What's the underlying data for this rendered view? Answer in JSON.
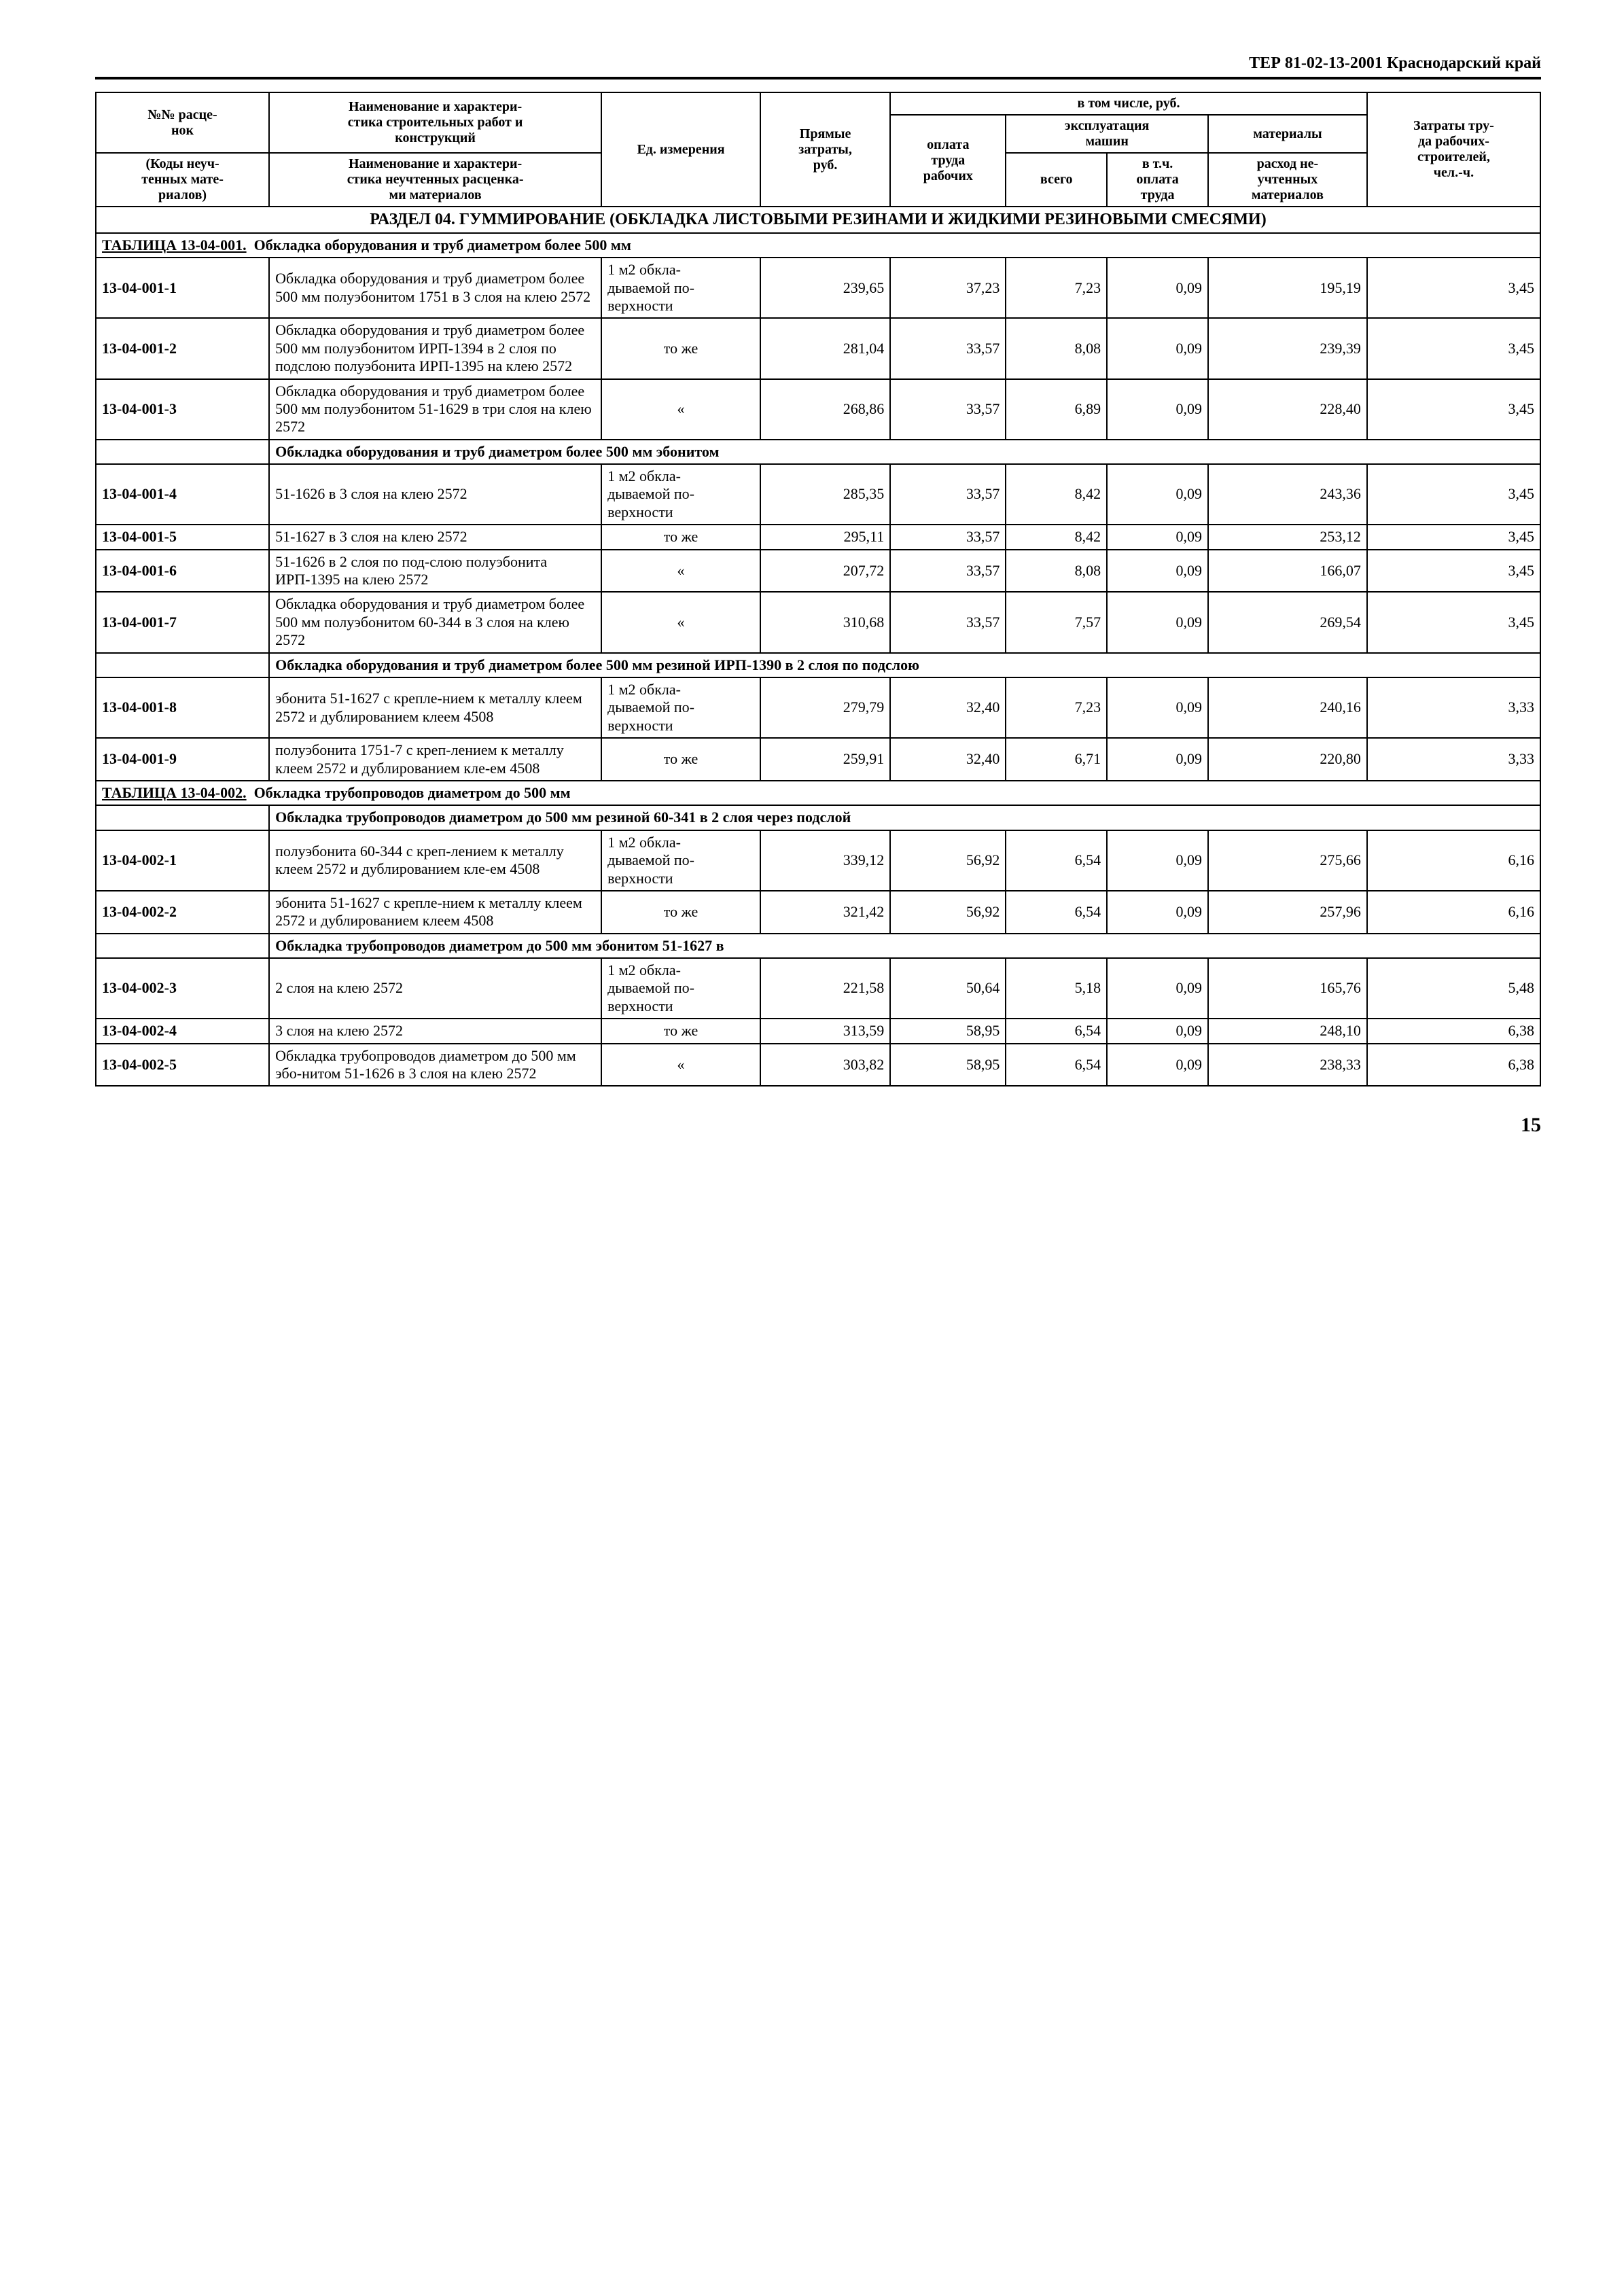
{
  "header": "ТЕР 81-02-13-2001  Краснодарский край",
  "columns": {
    "c1_top": "№№ расце-\nнок",
    "c1_bot": "(Коды неуч-\nтенных мате-\nриалов)",
    "c2_top": "Наименование и характери-\nстика строительных работ и\nконструкций",
    "c2_bot": "Наименование и характери-\nстика неучтенных расценка-\nми материалов",
    "c3": "Ед. измерения",
    "c4": "Прямые\nзатраты,\nруб.",
    "c5_group": "в том числе, руб.",
    "c5": "оплата\nтруда\nрабочих",
    "c6_group": "эксплуатация\nмашин",
    "c6a": "всего",
    "c6b": "в т.ч.\nоплата\nтруда",
    "c7_top": "материалы",
    "c7_bot": "расход не-\nучтенных\nматериалов",
    "c8": "Затраты тру-\nда рабочих-\nстроителей,\nчел.-ч."
  },
  "section": "РАЗДЕЛ 04. ГУММИРОВАНИЕ (ОБКЛАДКА ЛИСТОВЫМИ РЕЗИНАМИ И ЖИДКИМИ РЕЗИНОВЫМИ СМЕСЯМИ)",
  "t1_title_a": "ТАБЛИЦА 13-04-001.",
  "t1_title_b": "Обкладка оборудования и труб диаметром более 500 мм",
  "unit_m2": "1 м2 обкла-\nдываемой по-\nверхности",
  "unit_same": "то же",
  "unit_ditto": "«",
  "sub_1": "Обкладка оборудования и труб диаметром более 500 мм эбонитом",
  "sub_2": "Обкладка оборудования и труб диаметром более 500 мм резиной ИРП-1390 в 2 слоя по подслою",
  "rows1": [
    {
      "code": "13-04-001-1",
      "desc": "Обкладка оборудования и труб диаметром более 500 мм полуэбонитом 1751 в 3 слоя на клею 2572",
      "unit": "m2",
      "v": [
        "239,65",
        "37,23",
        "7,23",
        "0,09",
        "195,19",
        "3,45"
      ]
    },
    {
      "code": "13-04-001-2",
      "desc": "Обкладка оборудования и труб диаметром более 500 мм полуэбонитом ИРП-1394 в 2 слоя по подслою полуэбонита ИРП-1395 на клею 2572",
      "unit": "same",
      "v": [
        "281,04",
        "33,57",
        "8,08",
        "0,09",
        "239,39",
        "3,45"
      ]
    },
    {
      "code": "13-04-001-3",
      "desc": "Обкладка оборудования и труб диаметром более 500 мм полуэбонитом 51-1629 в три слоя на клею 2572",
      "unit": "ditto",
      "v": [
        "268,86",
        "33,57",
        "6,89",
        "0,09",
        "228,40",
        "3,45"
      ]
    }
  ],
  "rows1b": [
    {
      "code": "13-04-001-4",
      "desc": "51-1626 в 3 слоя на клею 2572",
      "unit": "m2",
      "v": [
        "285,35",
        "33,57",
        "8,42",
        "0,09",
        "243,36",
        "3,45"
      ]
    },
    {
      "code": "13-04-001-5",
      "desc": "51-1627 в 3 слоя на клею 2572",
      "unit": "same",
      "v": [
        "295,11",
        "33,57",
        "8,42",
        "0,09",
        "253,12",
        "3,45"
      ]
    },
    {
      "code": "13-04-001-6",
      "desc": "51-1626 в 2 слоя по под-слою полуэбонита ИРП-1395 на клею 2572",
      "unit": "ditto",
      "v": [
        "207,72",
        "33,57",
        "8,08",
        "0,09",
        "166,07",
        "3,45"
      ]
    },
    {
      "code": "13-04-001-7",
      "desc": "Обкладка оборудования и труб диаметром более 500 мм полуэбонитом 60-344 в 3 слоя на клею 2572",
      "unit": "ditto",
      "v": [
        "310,68",
        "33,57",
        "7,57",
        "0,09",
        "269,54",
        "3,45"
      ]
    }
  ],
  "rows1c": [
    {
      "code": "13-04-001-8",
      "desc": "эбонита 51-1627 с крепле-нием к металлу клеем 2572 и дублированием клеем 4508",
      "unit": "m2",
      "v": [
        "279,79",
        "32,40",
        "7,23",
        "0,09",
        "240,16",
        "3,33"
      ]
    },
    {
      "code": "13-04-001-9",
      "desc": "полуэбонита 1751-7 с креп-лением к металлу клеем 2572 и дублированием кле-ем 4508",
      "unit": "same",
      "v": [
        "259,91",
        "32,40",
        "6,71",
        "0,09",
        "220,80",
        "3,33"
      ]
    }
  ],
  "t2_title_a": "ТАБЛИЦА 13-04-002.",
  "t2_title_b": "Обкладка трубопроводов диаметром до 500 мм",
  "sub_3": "Обкладка трубопроводов диаметром до 500 мм резиной 60-341 в 2 слоя через подслой",
  "sub_4": "Обкладка трубопроводов диаметром до 500 мм эбонитом 51-1627 в",
  "rows2a": [
    {
      "code": "13-04-002-1",
      "desc": "полуэбонита 60-344 с креп-лением к металлу клеем 2572 и дублированием кле-ем 4508",
      "unit": "m2",
      "v": [
        "339,12",
        "56,92",
        "6,54",
        "0,09",
        "275,66",
        "6,16"
      ]
    },
    {
      "code": "13-04-002-2",
      "desc": "эбонита 51-1627 с крепле-нием к металлу клеем 2572 и дублированием клеем 4508",
      "unit": "same",
      "v": [
        "321,42",
        "56,92",
        "6,54",
        "0,09",
        "257,96",
        "6,16"
      ]
    }
  ],
  "rows2b": [
    {
      "code": "13-04-002-3",
      "desc": "2 слоя на клею 2572",
      "unit": "m2",
      "v": [
        "221,58",
        "50,64",
        "5,18",
        "0,09",
        "165,76",
        "5,48"
      ]
    },
    {
      "code": "13-04-002-4",
      "desc": "3 слоя на клею 2572",
      "unit": "same",
      "v": [
        "313,59",
        "58,95",
        "6,54",
        "0,09",
        "248,10",
        "6,38"
      ]
    },
    {
      "code": "13-04-002-5",
      "desc": "Обкладка трубопроводов диаметром до 500 мм эбо-нитом 51-1626 в 3 слоя на клею 2572",
      "unit": "ditto",
      "v": [
        "303,82",
        "58,95",
        "6,54",
        "0,09",
        "238,33",
        "6,38"
      ]
    }
  ],
  "page": "15",
  "colwidths": [
    "12%",
    "23%",
    "11%",
    "9%",
    "8%",
    "7%",
    "7%",
    "11%",
    "12%"
  ]
}
